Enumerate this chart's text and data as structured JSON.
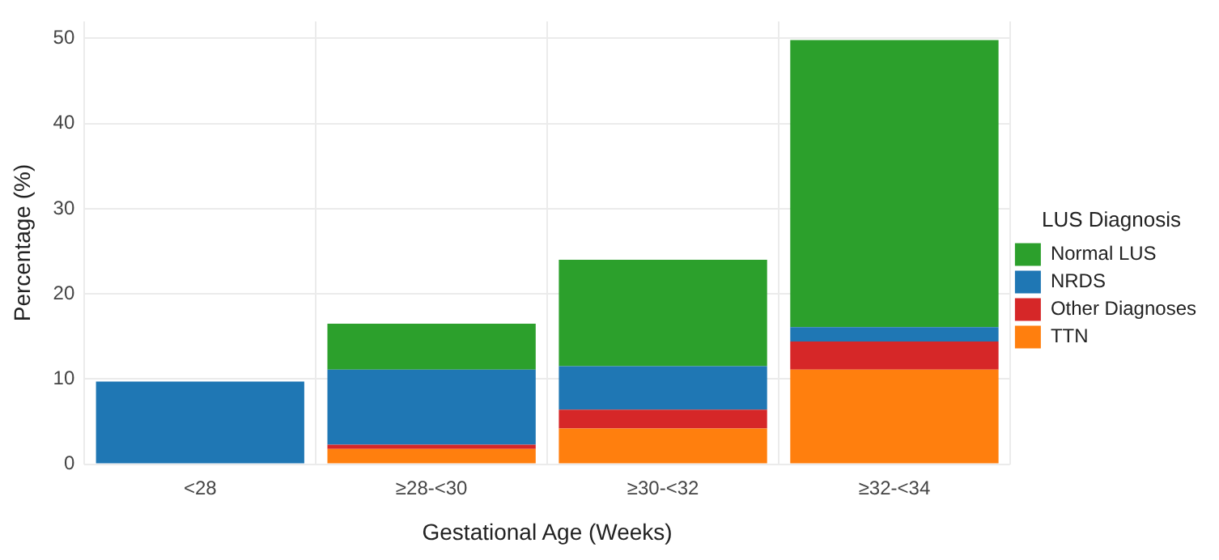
{
  "chart_data": {
    "type": "bar",
    "stacked": true,
    "xlabel": "Gestational Age (Weeks)",
    "ylabel": "Percentage (%)",
    "legend_title": "LUS Diagnosis",
    "legend": "right",
    "categories": [
      "<28",
      "≥28-<30",
      "≥30-<32",
      "≥32-<34"
    ],
    "series": [
      {
        "name": "TTN",
        "color": "#ff7f0e",
        "values": [
          0,
          1.8,
          4.2,
          11.1
        ]
      },
      {
        "name": "Other Diagnoses",
        "color": "#d62728",
        "values": [
          0,
          0.5,
          2.2,
          3.3
        ]
      },
      {
        "name": "NRDS",
        "color": "#1f77b4",
        "values": [
          9.7,
          8.8,
          5.1,
          1.7
        ]
      },
      {
        "name": "Normal LUS",
        "color": "#2ca02c",
        "values": [
          0,
          5.4,
          12.5,
          33.7
        ]
      }
    ],
    "ylim": [
      0,
      52
    ],
    "yticks": [
      0,
      10,
      20,
      30,
      40,
      50
    ],
    "grid": true
  }
}
